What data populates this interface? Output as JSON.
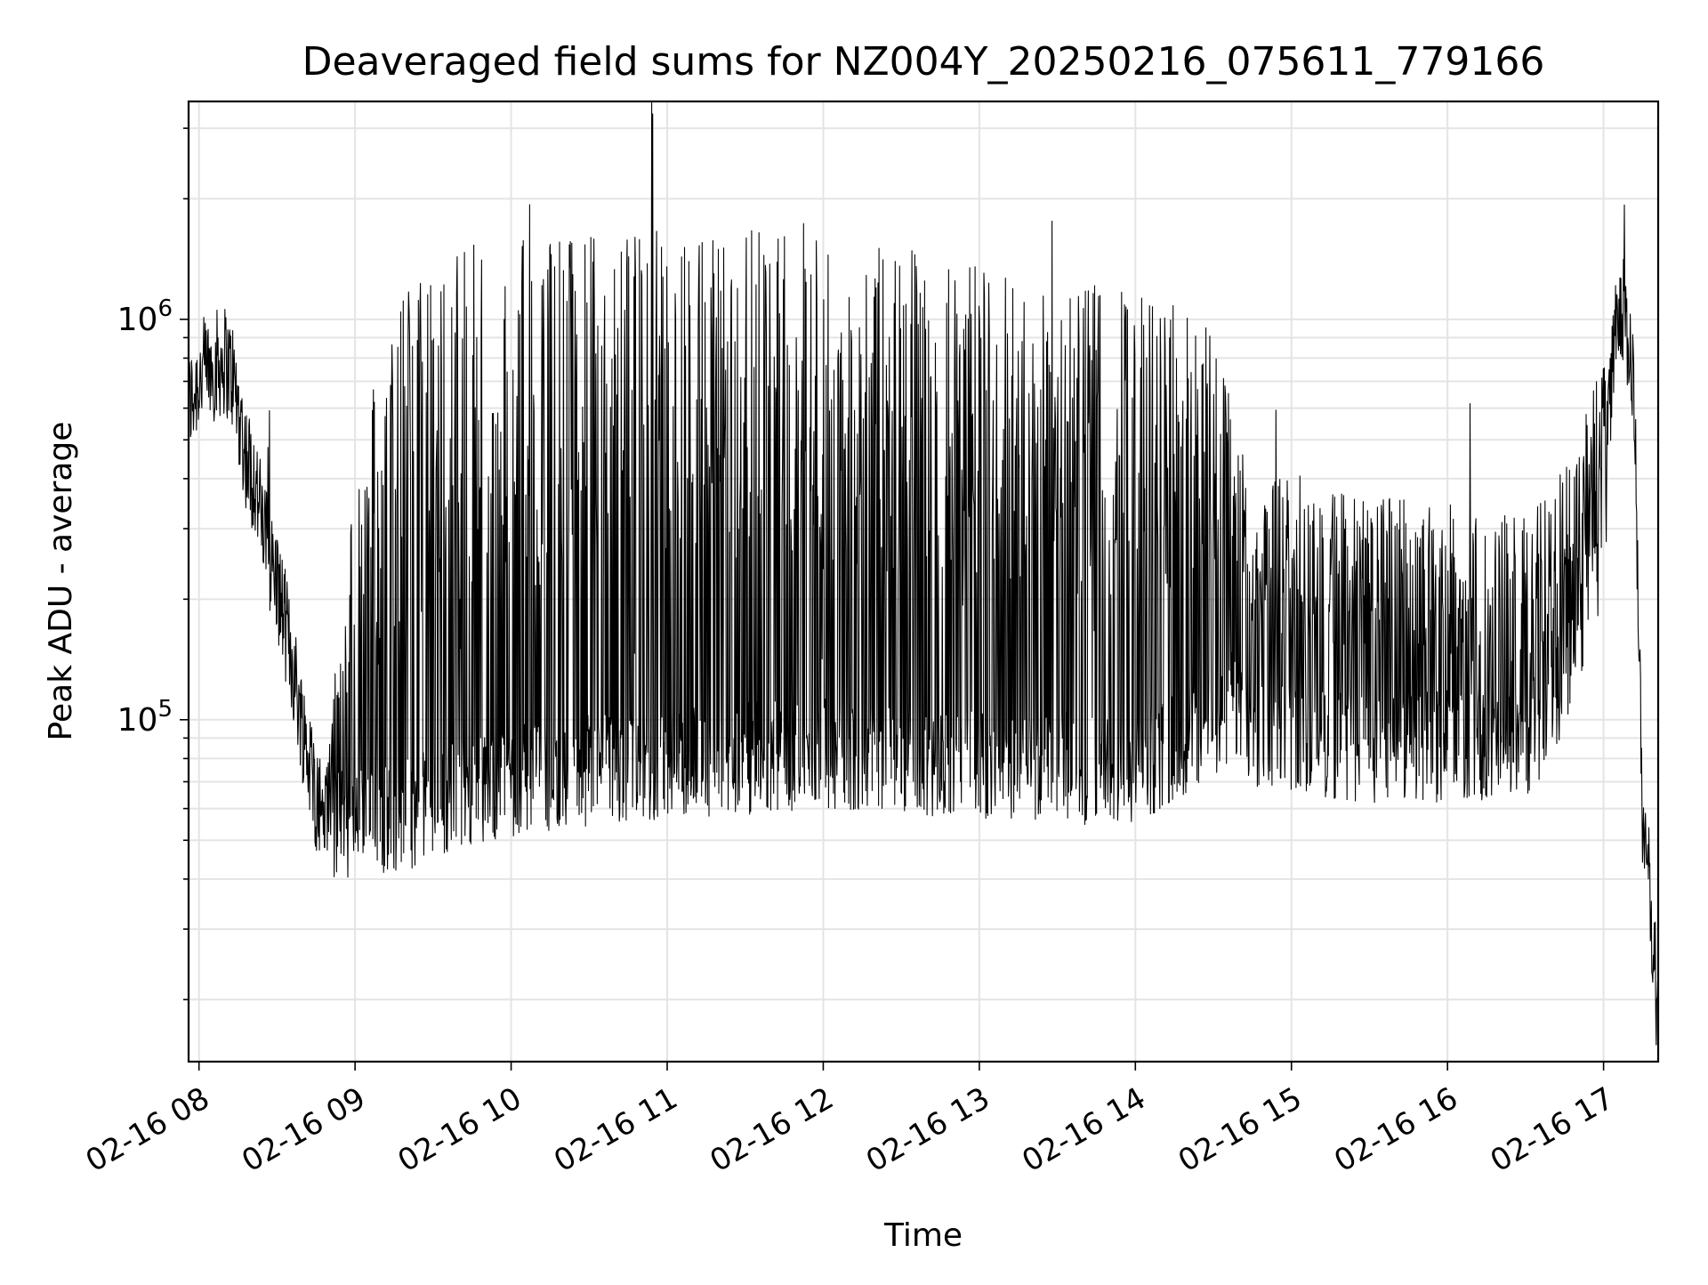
{
  "chart_data": {
    "type": "line",
    "title": "Deaveraged field sums for NZ004Y_20250216_075611_779166",
    "xlabel": "Time",
    "ylabel": "Peak ADU - average",
    "yscale": "log",
    "ylim": [
      14000,
      3500000
    ],
    "xlim": [
      "2025-02-16 07:56",
      "2025-02-16 17:21"
    ],
    "grid": true,
    "line_color": "#000000",
    "x_ticks": [
      "02-16 08",
      "02-16 09",
      "02-16 10",
      "02-16 11",
      "02-16 12",
      "02-16 13",
      "02-16 14",
      "02-16 15",
      "02-16 16",
      "02-16 17"
    ],
    "y_ticks": [
      {
        "base": "10",
        "exp": "5",
        "value": 100000
      },
      {
        "base": "10",
        "exp": "6",
        "value": 1000000
      }
    ],
    "series": [
      {
        "x": [
          "2025-02-16 07:56",
          "2025-02-16 08:00",
          "2025-02-16 08:05",
          "2025-02-16 08:10",
          "2025-02-16 08:13",
          "2025-02-16 08:18",
          "2025-02-16 08:22",
          "2025-02-16 08:25",
          "2025-02-16 08:30",
          "2025-02-16 08:35",
          "2025-02-16 08:40",
          "2025-02-16 08:45",
          "2025-02-16 08:50",
          "2025-02-16 08:55",
          "2025-02-16 09:00",
          "2025-02-16 09:10",
          "2025-02-16 09:20",
          "2025-02-16 09:30",
          "2025-02-16 09:40",
          "2025-02-16 10:00",
          "2025-02-16 10:30",
          "2025-02-16 11:00",
          "2025-02-16 11:30",
          "2025-02-16 12:00",
          "2025-02-16 12:30",
          "2025-02-16 13:00",
          "2025-02-16 13:30",
          "2025-02-16 14:00",
          "2025-02-16 14:30",
          "2025-02-16 14:38",
          "2025-02-16 14:45",
          "2025-02-16 15:00",
          "2025-02-16 15:30",
          "2025-02-16 16:00",
          "2025-02-16 16:30",
          "2025-02-16 16:40",
          "2025-02-16 16:50",
          "2025-02-16 17:00",
          "2025-02-16 17:05",
          "2025-02-16 17:08",
          "2025-02-16 17:12",
          "2025-02-16 17:15",
          "2025-02-16 17:18",
          "2025-02-16 17:21"
        ],
        "baseline": [
          600000,
          720000,
          760000,
          790000,
          720000,
          460000,
          380000,
          290000,
          220000,
          150000,
          95000,
          65000,
          55000,
          56000,
          55000,
          57000,
          58000,
          62000,
          66000,
          70000,
          75000,
          78000,
          80000,
          82000,
          80000,
          78000,
          76000,
          74000,
          100000,
          110000,
          95000,
          88000,
          85000,
          86000,
          88000,
          105000,
          170000,
          260000,
          900000,
          1100000,
          600000,
          50000,
          37000,
          17000
        ],
        "peaks": [
          600000,
          720000,
          760000,
          790000,
          720000,
          460000,
          380000,
          290000,
          220000,
          150000,
          95000,
          65000,
          90000,
          200000,
          400000,
          900000,
          1300000,
          1450000,
          1550000,
          1650000,
          1680000,
          1700000,
          1680000,
          1650000,
          1550000,
          1400000,
          1300000,
          1200000,
          1000000,
          600000,
          450000,
          420000,
          380000,
          350000,
          320000,
          380000,
          500000,
          800000,
          1300000,
          1400000,
          600000,
          50000,
          37000,
          17000
        ]
      }
    ]
  }
}
